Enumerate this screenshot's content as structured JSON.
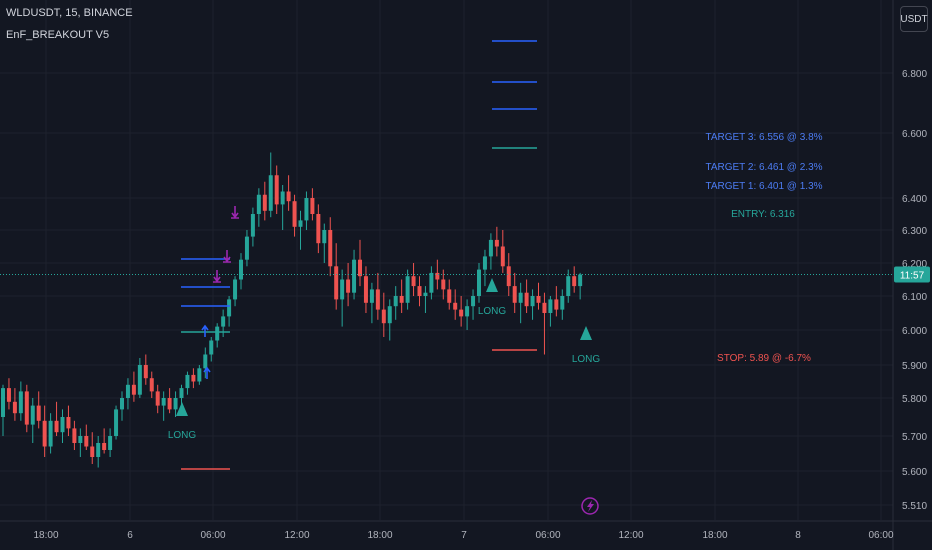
{
  "chart_data": {
    "type": "candlestick",
    "symbol": "WLDUSDT",
    "interval": "15",
    "exchange": "BINANCE",
    "indicator": "EnF_BREAKOUT V5",
    "currency": "USDT",
    "y_axis_ticks": [
      6.8,
      6.6,
      6.4,
      6.3,
      6.2,
      6.1,
      6.0,
      5.9,
      5.8,
      5.7,
      5.6,
      5.51
    ],
    "y_axis_tick_labels": [
      "6.800",
      "6.600",
      "6.400",
      "6.300",
      "6.200",
      "6.100",
      "6.000",
      "5.900",
      "5.800",
      "5.700",
      "5.600",
      "5.510"
    ],
    "x_axis_ticks": [
      "18:00",
      "6",
      "06:00",
      "12:00",
      "18:00",
      "7",
      "06:00",
      "12:00",
      "18:00",
      "8",
      "06:00"
    ],
    "current_price": 6.165,
    "current_price_label": "11:57",
    "colors": {
      "up": "#26a69a",
      "down": "#ef5350",
      "target": "#2962ff",
      "target_text": "#4c7cf3",
      "entry": "#26a69a",
      "stop": "#ef5350",
      "arrow_purple": "#9c27b0",
      "arrow_blue": "#2962ff",
      "price_line": "#26a69a"
    },
    "signals": [
      {
        "type": "LONG",
        "label": "LONG",
        "x_index": 30
      },
      {
        "type": "LONG",
        "label": "LONG",
        "x_index": 81
      },
      {
        "type": "LONG",
        "label": "LONG",
        "x_index": 97
      }
    ],
    "levels": [
      {
        "name": "TARGET 3",
        "label": "TARGET 3: 6.556 @ 3.8%",
        "value": 6.556
      },
      {
        "name": "TARGET 2",
        "label": "TARGET 2: 6.461 @ 2.3%",
        "value": 6.461
      },
      {
        "name": "TARGET 1",
        "label": "TARGET 1: 6.401 @ 1.3%",
        "value": 6.401
      },
      {
        "name": "ENTRY",
        "label": "ENTRY: 6.316",
        "value": 6.316
      },
      {
        "name": "STOP",
        "label": "STOP: 5.89 @ -6.7%",
        "value": 5.89
      }
    ],
    "candles": [
      [
        5.75,
        5.84,
        5.7,
        5.83
      ],
      [
        5.83,
        5.86,
        5.77,
        5.79
      ],
      [
        5.79,
        5.83,
        5.74,
        5.76
      ],
      [
        5.76,
        5.85,
        5.74,
        5.82
      ],
      [
        5.82,
        5.84,
        5.71,
        5.73
      ],
      [
        5.73,
        5.8,
        5.68,
        5.78
      ],
      [
        5.78,
        5.82,
        5.72,
        5.74
      ],
      [
        5.74,
        5.78,
        5.64,
        5.67
      ],
      [
        5.67,
        5.76,
        5.65,
        5.74
      ],
      [
        5.74,
        5.79,
        5.7,
        5.71
      ],
      [
        5.71,
        5.77,
        5.68,
        5.75
      ],
      [
        5.75,
        5.78,
        5.7,
        5.72
      ],
      [
        5.72,
        5.74,
        5.66,
        5.68
      ],
      [
        5.68,
        5.72,
        5.64,
        5.7
      ],
      [
        5.7,
        5.73,
        5.66,
        5.67
      ],
      [
        5.67,
        5.71,
        5.62,
        5.64
      ],
      [
        5.64,
        5.7,
        5.61,
        5.68
      ],
      [
        5.68,
        5.72,
        5.65,
        5.66
      ],
      [
        5.66,
        5.72,
        5.64,
        5.7
      ],
      [
        5.7,
        5.78,
        5.69,
        5.77
      ],
      [
        5.77,
        5.82,
        5.74,
        5.8
      ],
      [
        5.8,
        5.86,
        5.77,
        5.84
      ],
      [
        5.84,
        5.88,
        5.79,
        5.81
      ],
      [
        5.81,
        5.92,
        5.8,
        5.9
      ],
      [
        5.9,
        5.93,
        5.84,
        5.86
      ],
      [
        5.86,
        5.88,
        5.8,
        5.82
      ],
      [
        5.82,
        5.84,
        5.76,
        5.78
      ],
      [
        5.78,
        5.82,
        5.74,
        5.8
      ],
      [
        5.8,
        5.83,
        5.76,
        5.77
      ],
      [
        5.77,
        5.82,
        5.75,
        5.8
      ],
      [
        5.8,
        5.84,
        5.78,
        5.83
      ],
      [
        5.83,
        5.88,
        5.81,
        5.87
      ],
      [
        5.87,
        5.89,
        5.83,
        5.85
      ],
      [
        5.85,
        5.9,
        5.84,
        5.89
      ],
      [
        5.89,
        5.95,
        5.86,
        5.93
      ],
      [
        5.93,
        5.98,
        5.91,
        5.97
      ],
      [
        5.97,
        6.02,
        5.95,
        6.01
      ],
      [
        6.01,
        6.06,
        5.98,
        6.04
      ],
      [
        6.04,
        6.1,
        6.01,
        6.09
      ],
      [
        6.09,
        6.16,
        6.07,
        6.15
      ],
      [
        6.15,
        6.23,
        6.12,
        6.21
      ],
      [
        6.21,
        6.3,
        6.19,
        6.28
      ],
      [
        6.28,
        6.37,
        6.25,
        6.35
      ],
      [
        6.35,
        6.43,
        6.31,
        6.41
      ],
      [
        6.41,
        6.45,
        6.33,
        6.36
      ],
      [
        6.36,
        6.54,
        6.34,
        6.47
      ],
      [
        6.47,
        6.5,
        6.35,
        6.38
      ],
      [
        6.38,
        6.44,
        6.3,
        6.42
      ],
      [
        6.42,
        6.47,
        6.36,
        6.39
      ],
      [
        6.39,
        6.41,
        6.28,
        6.31
      ],
      [
        6.31,
        6.36,
        6.24,
        6.33
      ],
      [
        6.33,
        6.42,
        6.3,
        6.4
      ],
      [
        6.4,
        6.43,
        6.33,
        6.35
      ],
      [
        6.35,
        6.38,
        6.23,
        6.26
      ],
      [
        6.26,
        6.32,
        6.2,
        6.3
      ],
      [
        6.3,
        6.34,
        6.16,
        6.19
      ],
      [
        6.19,
        6.26,
        6.06,
        6.09
      ],
      [
        6.09,
        6.18,
        6.01,
        6.15
      ],
      [
        6.15,
        6.2,
        6.07,
        6.11
      ],
      [
        6.11,
        6.24,
        6.09,
        6.21
      ],
      [
        6.21,
        6.27,
        6.13,
        6.16
      ],
      [
        6.16,
        6.19,
        6.05,
        6.08
      ],
      [
        6.08,
        6.14,
        6.02,
        6.12
      ],
      [
        6.12,
        6.17,
        6.03,
        6.06
      ],
      [
        6.06,
        6.11,
        5.98,
        6.02
      ],
      [
        6.02,
        6.09,
        5.97,
        6.07
      ],
      [
        6.07,
        6.13,
        6.03,
        6.1
      ],
      [
        6.1,
        6.15,
        6.05,
        6.08
      ],
      [
        6.08,
        6.18,
        6.06,
        6.16
      ],
      [
        6.16,
        6.2,
        6.1,
        6.13
      ],
      [
        6.13,
        6.16,
        6.07,
        6.1
      ],
      [
        6.1,
        6.13,
        6.05,
        6.11
      ],
      [
        6.11,
        6.19,
        6.09,
        6.17
      ],
      [
        6.17,
        6.21,
        6.12,
        6.15
      ],
      [
        6.15,
        6.18,
        6.09,
        6.12
      ],
      [
        6.12,
        6.15,
        6.06,
        6.08
      ],
      [
        6.08,
        6.12,
        6.03,
        6.06
      ],
      [
        6.06,
        6.1,
        6.01,
        6.04
      ],
      [
        6.04,
        6.09,
        6.0,
        6.07
      ],
      [
        6.07,
        6.12,
        6.03,
        6.1
      ],
      [
        6.1,
        6.2,
        6.08,
        6.18
      ],
      [
        6.18,
        6.24,
        6.13,
        6.22
      ],
      [
        6.22,
        6.29,
        6.18,
        6.27
      ],
      [
        6.27,
        6.31,
        6.22,
        6.25
      ],
      [
        6.25,
        6.3,
        6.17,
        6.19
      ],
      [
        6.19,
        6.23,
        6.1,
        6.13
      ],
      [
        6.13,
        6.17,
        6.05,
        6.08
      ],
      [
        6.08,
        6.14,
        6.02,
        6.11
      ],
      [
        6.11,
        6.15,
        6.05,
        6.07
      ],
      [
        6.07,
        6.12,
        6.03,
        6.1
      ],
      [
        6.1,
        6.14,
        6.06,
        6.08
      ],
      [
        6.08,
        6.11,
        5.93,
        6.05
      ],
      [
        6.05,
        6.1,
        6.01,
        6.09
      ],
      [
        6.09,
        6.13,
        6.04,
        6.06
      ],
      [
        6.06,
        6.12,
        6.03,
        6.1
      ],
      [
        6.1,
        6.18,
        6.08,
        6.16
      ],
      [
        6.16,
        6.19,
        6.11,
        6.13
      ],
      [
        6.13,
        6.17,
        6.09,
        6.165
      ]
    ]
  }
}
